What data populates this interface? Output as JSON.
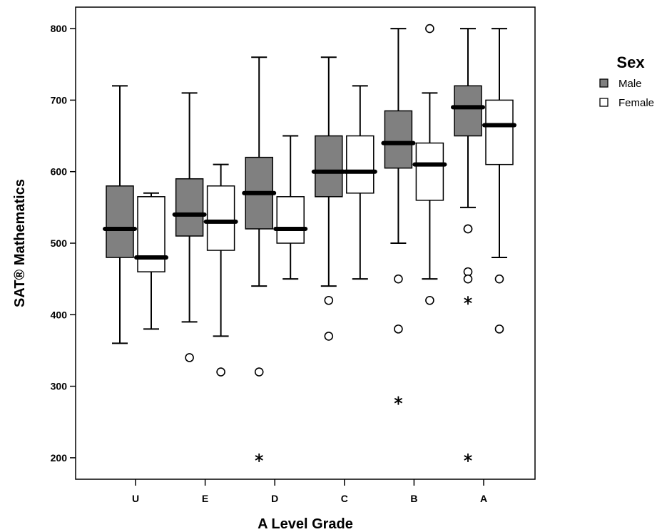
{
  "chart_data": {
    "type": "boxplot",
    "xlabel": "A Level Grade",
    "ylabel": "SAT® Mathematics",
    "ylim": [
      170,
      830
    ],
    "yticks": [
      200,
      300,
      400,
      500,
      600,
      700,
      800
    ],
    "categories": [
      "U",
      "E",
      "D",
      "C",
      "B",
      "A"
    ],
    "legend": {
      "title": "Sex",
      "position": "right"
    },
    "series": [
      {
        "name": "Male",
        "color": "#808080",
        "boxes": [
          {
            "category": "U",
            "low": 360,
            "q1": 480,
            "median": 520,
            "q3": 580,
            "high": 720,
            "outliers": [],
            "extremes": []
          },
          {
            "category": "E",
            "low": 390,
            "q1": 510,
            "median": 540,
            "q3": 590,
            "high": 710,
            "outliers": [
              340
            ],
            "extremes": []
          },
          {
            "category": "D",
            "low": 440,
            "q1": 520,
            "median": 570,
            "q3": 620,
            "high": 760,
            "outliers": [
              320
            ],
            "extremes": [
              200
            ]
          },
          {
            "category": "C",
            "low": 440,
            "q1": 565,
            "median": 600,
            "q3": 650,
            "high": 760,
            "outliers": [
              420,
              370
            ],
            "extremes": []
          },
          {
            "category": "B",
            "low": 500,
            "q1": 605,
            "median": 640,
            "q3": 685,
            "high": 800,
            "outliers": [
              450,
              380
            ],
            "extremes": [
              280
            ]
          },
          {
            "category": "A",
            "low": 550,
            "q1": 650,
            "median": 690,
            "q3": 720,
            "high": 800,
            "outliers": [
              520,
              520,
              460,
              450
            ],
            "extremes": [
              420,
              200
            ]
          }
        ]
      },
      {
        "name": "Female",
        "color": "#ffffff",
        "boxes": [
          {
            "category": "U",
            "low": 380,
            "q1": 460,
            "median": 480,
            "q3": 565,
            "high": 570,
            "outliers": [],
            "extremes": []
          },
          {
            "category": "E",
            "low": 370,
            "q1": 490,
            "median": 530,
            "q3": 580,
            "high": 610,
            "outliers": [
              320
            ],
            "extremes": []
          },
          {
            "category": "D",
            "low": 450,
            "q1": 500,
            "median": 520,
            "q3": 565,
            "high": 650,
            "outliers": [],
            "extremes": []
          },
          {
            "category": "C",
            "low": 450,
            "q1": 570,
            "median": 600,
            "q3": 650,
            "high": 720,
            "outliers": [],
            "extremes": []
          },
          {
            "category": "B",
            "low": 450,
            "q1": 560,
            "median": 610,
            "q3": 640,
            "high": 710,
            "outliers": [
              800,
              420
            ],
            "extremes": []
          },
          {
            "category": "A",
            "low": 480,
            "q1": 610,
            "median": 665,
            "q3": 700,
            "high": 800,
            "outliers": [
              450,
              380
            ],
            "extremes": []
          }
        ]
      }
    ]
  }
}
